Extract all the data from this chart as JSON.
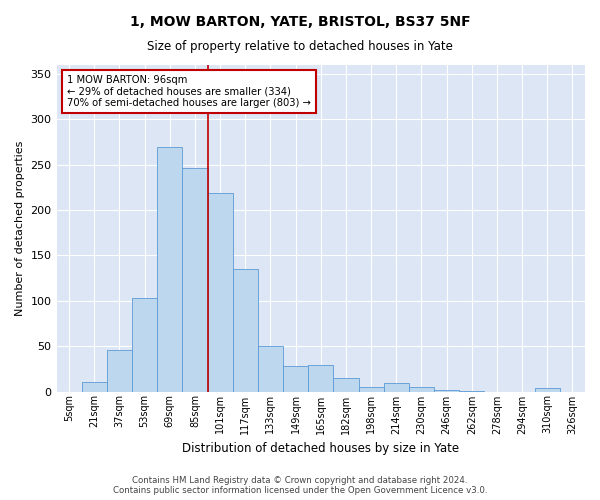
{
  "title": "1, MOW BARTON, YATE, BRISTOL, BS37 5NF",
  "subtitle": "Size of property relative to detached houses in Yate",
  "xlabel": "Distribution of detached houses by size in Yate",
  "ylabel": "Number of detached properties",
  "footer_line1": "Contains HM Land Registry data © Crown copyright and database right 2024.",
  "footer_line2": "Contains public sector information licensed under the Open Government Licence v3.0.",
  "bar_color": "#bdd7ee",
  "bar_edge_color": "#5b9bd5",
  "fig_bg_color": "#ffffff",
  "ax_bg_color": "#dce6f5",
  "grid_color": "#ffffff",
  "annotation_box_edge_color": "#c00000",
  "property_line_color": "#c00000",
  "annotation_text_line1": "1 MOW BARTON: 96sqm",
  "annotation_text_line2": "← 29% of detached houses are smaller (334)",
  "annotation_text_line3": "70% of semi-detached houses are larger (803) →",
  "categories": [
    "5sqm",
    "21sqm",
    "37sqm",
    "53sqm",
    "69sqm",
    "85sqm",
    "101sqm",
    "117sqm",
    "133sqm",
    "149sqm",
    "165sqm",
    "182sqm",
    "198sqm",
    "214sqm",
    "230sqm",
    "246sqm",
    "262sqm",
    "278sqm",
    "294sqm",
    "310sqm",
    "326sqm"
  ],
  "values": [
    0,
    10,
    46,
    103,
    270,
    246,
    219,
    135,
    50,
    28,
    29,
    15,
    5,
    9,
    5,
    2,
    1,
    0,
    0,
    4,
    0
  ],
  "property_line_x": 5.5,
  "ylim": [
    0,
    360
  ],
  "yticks": [
    0,
    50,
    100,
    150,
    200,
    250,
    300,
    350
  ]
}
